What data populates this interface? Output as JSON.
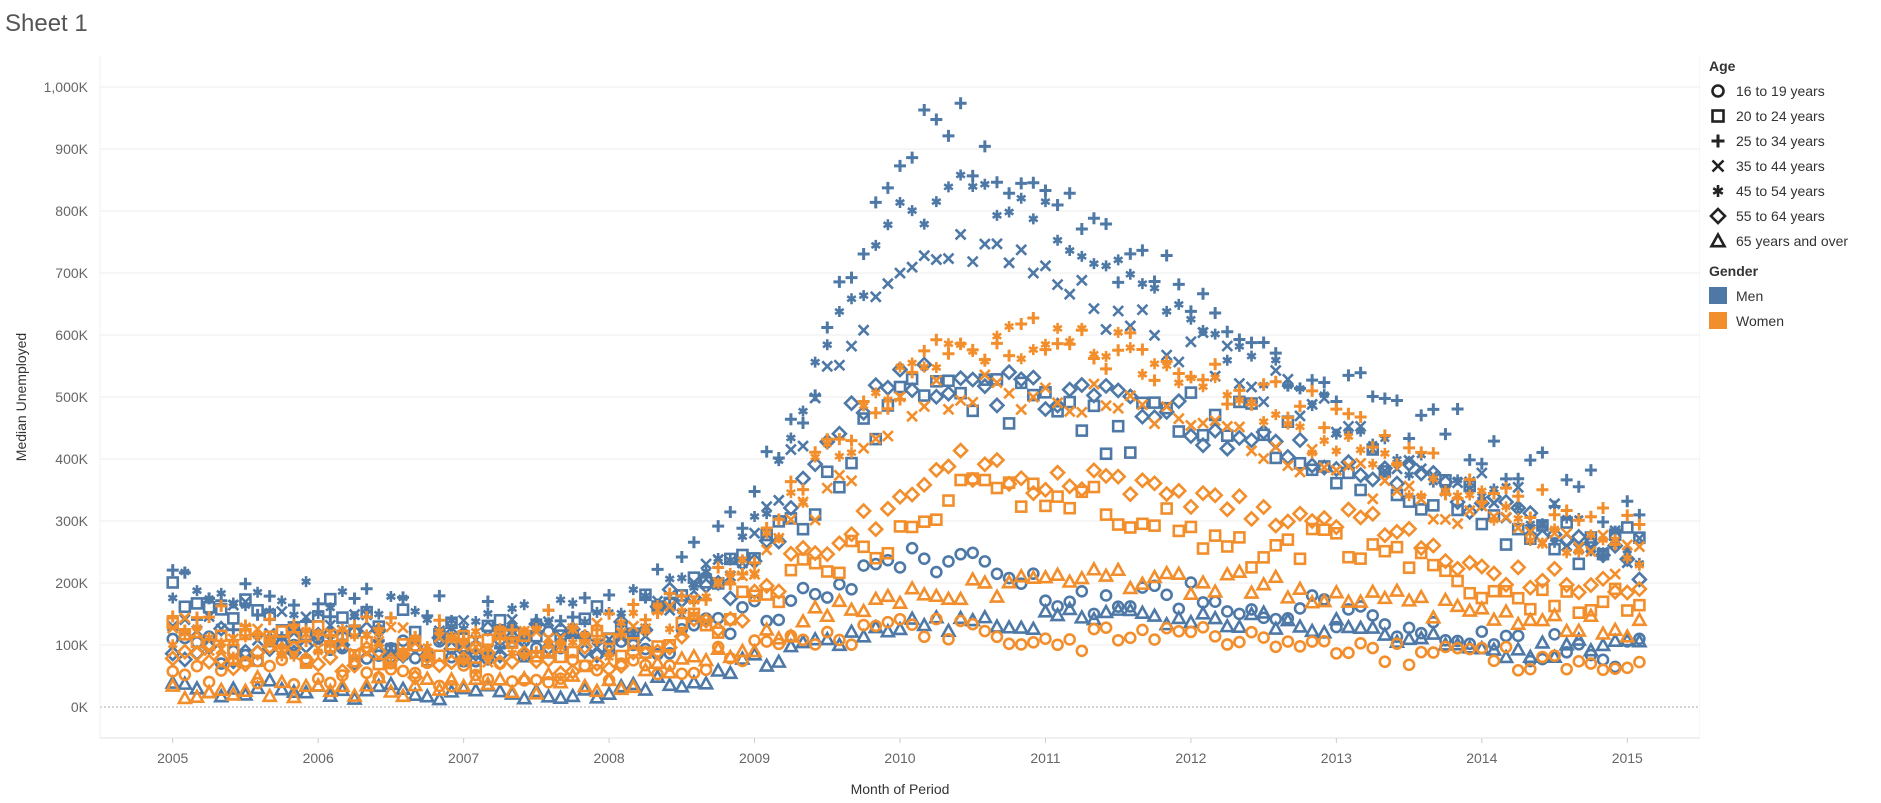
{
  "sheet_title": "Sheet 1",
  "chart_data": {
    "type": "scatter",
    "xlabel": "Month of Period",
    "ylabel": "Median Unemployed",
    "x_ticks": [
      "2005",
      "2006",
      "2007",
      "2008",
      "2009",
      "2010",
      "2011",
      "2012",
      "2013",
      "2014",
      "2015"
    ],
    "y_ticks": [
      "0K",
      "100K",
      "200K",
      "300K",
      "400K",
      "500K",
      "600K",
      "700K",
      "800K",
      "900K",
      "1,000K"
    ],
    "xlim": [
      "2004-07",
      "2015-07"
    ],
    "ylim": [
      -50000,
      1050000
    ],
    "x_start": "2005-01",
    "n_months": 122,
    "grid": "horizontal",
    "legend_position": "right",
    "colors": {
      "Men": "#4e79a7",
      "Women": "#f28e2b"
    },
    "legend": {
      "age_title": "Age",
      "age_items": [
        {
          "label": "16 to 19 years",
          "shape": "circle"
        },
        {
          "label": "20 to 24 years",
          "shape": "square"
        },
        {
          "label": "25 to 34 years",
          "shape": "plus"
        },
        {
          "label": "35 to 44 years",
          "shape": "cross"
        },
        {
          "label": "45 to 54 years",
          "shape": "asterisk"
        },
        {
          "label": "55 to 64 years",
          "shape": "diamond"
        },
        {
          "label": "65 years and over",
          "shape": "triangle"
        }
      ],
      "gender_title": "Gender",
      "gender_items": [
        {
          "label": "Men",
          "color": "#4e79a7"
        },
        {
          "label": "Women",
          "color": "#f28e2b"
        }
      ]
    },
    "series": [
      {
        "gender": "Men",
        "age": "16 to 19 years",
        "shape": "circle",
        "color": "#4e79a7",
        "anchors": [
          [
            "2005-01",
            95000
          ],
          [
            "2007-01",
            90000
          ],
          [
            "2008-06",
            110000
          ],
          [
            "2009-06",
            180000
          ],
          [
            "2010-01",
            240000
          ],
          [
            "2010-06",
            240000
          ],
          [
            "2011-01",
            190000
          ],
          [
            "2011-06",
            170000
          ],
          [
            "2012-01",
            180000
          ],
          [
            "2013-01",
            150000
          ],
          [
            "2014-01",
            100000
          ],
          [
            "2015-01",
            85000
          ]
        ],
        "noise": 25000
      },
      {
        "gender": "Men",
        "age": "20 to 24 years",
        "shape": "square",
        "color": "#4e79a7",
        "anchors": [
          [
            "2005-01",
            170000
          ],
          [
            "2006-01",
            150000
          ],
          [
            "2007-01",
            100000
          ],
          [
            "2008-01",
            130000
          ],
          [
            "2008-06",
            150000
          ],
          [
            "2009-01",
            230000
          ],
          [
            "2009-06",
            340000
          ],
          [
            "2010-01",
            500000
          ],
          [
            "2010-06",
            520000
          ],
          [
            "2011-01",
            480000
          ],
          [
            "2011-06",
            440000
          ],
          [
            "2012-01",
            470000
          ],
          [
            "2012-06",
            450000
          ],
          [
            "2013-01",
            400000
          ],
          [
            "2013-06",
            360000
          ],
          [
            "2014-01",
            310000
          ],
          [
            "2014-06",
            270000
          ],
          [
            "2015-01",
            250000
          ]
        ],
        "noise": 40000
      },
      {
        "gender": "Men",
        "age": "25 to 34 years",
        "shape": "plus",
        "color": "#4e79a7",
        "anchors": [
          [
            "2005-01",
            175000
          ],
          [
            "2006-01",
            150000
          ],
          [
            "2007-01",
            130000
          ],
          [
            "2008-01",
            140000
          ],
          [
            "2008-06",
            200000
          ],
          [
            "2009-01",
            320000
          ],
          [
            "2009-06",
            550000
          ],
          [
            "2009-09",
            680000
          ],
          [
            "2010-01",
            880000
          ],
          [
            "2010-05",
            960000
          ],
          [
            "2010-09",
            820000
          ],
          [
            "2011-01",
            810000
          ],
          [
            "2011-06",
            740000
          ],
          [
            "2012-01",
            660000
          ],
          [
            "2012-06",
            600000
          ],
          [
            "2013-01",
            520000
          ],
          [
            "2013-06",
            470000
          ],
          [
            "2014-01",
            430000
          ],
          [
            "2014-06",
            370000
          ],
          [
            "2015-01",
            320000
          ]
        ],
        "noise": 50000
      },
      {
        "gender": "Men",
        "age": "35 to 44 years",
        "shape": "cross",
        "color": "#4e79a7",
        "anchors": [
          [
            "2005-01",
            150000
          ],
          [
            "2006-01",
            130000
          ],
          [
            "2007-01",
            110000
          ],
          [
            "2008-01",
            130000
          ],
          [
            "2008-06",
            160000
          ],
          [
            "2009-01",
            260000
          ],
          [
            "2009-06",
            490000
          ],
          [
            "2010-01",
            720000
          ],
          [
            "2010-06",
            740000
          ],
          [
            "2011-01",
            700000
          ],
          [
            "2011-06",
            640000
          ],
          [
            "2012-01",
            580000
          ],
          [
            "2012-06",
            530000
          ],
          [
            "2013-01",
            460000
          ],
          [
            "2013-06",
            400000
          ],
          [
            "2014-01",
            350000
          ],
          [
            "2014-06",
            300000
          ],
          [
            "2015-01",
            260000
          ]
        ],
        "noise": 35000
      },
      {
        "gender": "Men",
        "age": "45 to 54 years",
        "shape": "asterisk",
        "color": "#4e79a7",
        "anchors": [
          [
            "2005-01",
            195000
          ],
          [
            "2006-01",
            175000
          ],
          [
            "2007-01",
            135000
          ],
          [
            "2008-01",
            150000
          ],
          [
            "2008-06",
            190000
          ],
          [
            "2009-01",
            290000
          ],
          [
            "2009-06",
            540000
          ],
          [
            "2010-01",
            790000
          ],
          [
            "2010-06",
            830000
          ],
          [
            "2011-01",
            790000
          ],
          [
            "2011-06",
            710000
          ],
          [
            "2012-01",
            620000
          ],
          [
            "2012-06",
            560000
          ],
          [
            "2013-01",
            470000
          ],
          [
            "2013-06",
            410000
          ],
          [
            "2014-01",
            350000
          ],
          [
            "2014-06",
            300000
          ],
          [
            "2015-01",
            260000
          ]
        ],
        "noise": 30000
      },
      {
        "gender": "Men",
        "age": "55 to 64 years",
        "shape": "diamond",
        "color": "#4e79a7",
        "anchors": [
          [
            "2005-01",
            100000
          ],
          [
            "2007-01",
            100000
          ],
          [
            "2008-01",
            110000
          ],
          [
            "2008-06",
            160000
          ],
          [
            "2009-01",
            220000
          ],
          [
            "2009-06",
            400000
          ],
          [
            "2010-01",
            540000
          ],
          [
            "2010-06",
            520000
          ],
          [
            "2011-01",
            510000
          ],
          [
            "2011-06",
            490000
          ],
          [
            "2012-01",
            460000
          ],
          [
            "2012-06",
            420000
          ],
          [
            "2013-01",
            400000
          ],
          [
            "2013-06",
            370000
          ],
          [
            "2014-01",
            340000
          ],
          [
            "2014-06",
            280000
          ],
          [
            "2015-01",
            230000
          ]
        ],
        "noise": 30000
      },
      {
        "gender": "Men",
        "age": "65 years and over",
        "shape": "triangle",
        "color": "#4e79a7",
        "anchors": [
          [
            "2005-01",
            35000
          ],
          [
            "2006-01",
            25000
          ],
          [
            "2007-01",
            20000
          ],
          [
            "2008-01",
            30000
          ],
          [
            "2008-06",
            40000
          ],
          [
            "2009-01",
            70000
          ],
          [
            "2009-06",
            100000
          ],
          [
            "2010-01",
            130000
          ],
          [
            "2010-06",
            135000
          ],
          [
            "2011-01",
            140000
          ],
          [
            "2011-06",
            150000
          ],
          [
            "2012-01",
            140000
          ],
          [
            "2012-06",
            140000
          ],
          [
            "2013-01",
            130000
          ],
          [
            "2014-01",
            95000
          ],
          [
            "2015-01",
            95000
          ]
        ],
        "noise": 15000
      },
      {
        "gender": "Women",
        "age": "16 to 19 years",
        "shape": "circle",
        "color": "#f28e2b",
        "anchors": [
          [
            "2005-01",
            60000
          ],
          [
            "2007-01",
            50000
          ],
          [
            "2008-06",
            65000
          ],
          [
            "2009-01",
            90000
          ],
          [
            "2009-06",
            110000
          ],
          [
            "2010-01",
            130000
          ],
          [
            "2010-06",
            120000
          ],
          [
            "2011-01",
            110000
          ],
          [
            "2012-01",
            110000
          ],
          [
            "2013-01",
            95000
          ],
          [
            "2014-01",
            80000
          ],
          [
            "2015-01",
            70000
          ]
        ],
        "noise": 20000
      },
      {
        "gender": "Women",
        "age": "20 to 24 years",
        "shape": "square",
        "color": "#f28e2b",
        "anchors": [
          [
            "2005-01",
            110000
          ],
          [
            "2007-01",
            90000
          ],
          [
            "2008-01",
            95000
          ],
          [
            "2008-06",
            110000
          ],
          [
            "2009-01",
            170000
          ],
          [
            "2009-06",
            220000
          ],
          [
            "2010-01",
            280000
          ],
          [
            "2010-06",
            350000
          ],
          [
            "2011-01",
            330000
          ],
          [
            "2011-06",
            330000
          ],
          [
            "2012-01",
            280000
          ],
          [
            "2012-06",
            250000
          ],
          [
            "2013-01",
            260000
          ],
          [
            "2013-06",
            240000
          ],
          [
            "2014-01",
            200000
          ],
          [
            "2014-06",
            180000
          ],
          [
            "2015-01",
            160000
          ]
        ],
        "noise": 30000
      },
      {
        "gender": "Women",
        "age": "25 to 34 years",
        "shape": "plus",
        "color": "#f28e2b",
        "anchors": [
          [
            "2005-01",
            140000
          ],
          [
            "2007-01",
            110000
          ],
          [
            "2008-01",
            130000
          ],
          [
            "2008-06",
            150000
          ],
          [
            "2009-01",
            230000
          ],
          [
            "2009-06",
            420000
          ],
          [
            "2010-01",
            520000
          ],
          [
            "2010-06",
            590000
          ],
          [
            "2011-01",
            600000
          ],
          [
            "2011-06",
            580000
          ],
          [
            "2012-01",
            540000
          ],
          [
            "2012-06",
            510000
          ],
          [
            "2013-01",
            470000
          ],
          [
            "2013-06",
            420000
          ],
          [
            "2014-01",
            340000
          ],
          [
            "2014-06",
            320000
          ],
          [
            "2015-01",
            280000
          ]
        ],
        "noise": 35000
      },
      {
        "gender": "Women",
        "age": "35 to 44 years",
        "shape": "cross",
        "color": "#f28e2b",
        "anchors": [
          [
            "2005-01",
            120000
          ],
          [
            "2007-01",
            100000
          ],
          [
            "2008-01",
            110000
          ],
          [
            "2008-06",
            140000
          ],
          [
            "2009-01",
            200000
          ],
          [
            "2009-06",
            330000
          ],
          [
            "2010-01",
            480000
          ],
          [
            "2010-06",
            510000
          ],
          [
            "2011-01",
            500000
          ],
          [
            "2011-06",
            490000
          ],
          [
            "2012-01",
            460000
          ],
          [
            "2012-06",
            420000
          ],
          [
            "2013-01",
            380000
          ],
          [
            "2013-06",
            340000
          ],
          [
            "2014-01",
            300000
          ],
          [
            "2014-06",
            270000
          ],
          [
            "2015-01",
            240000
          ]
        ],
        "noise": 30000
      },
      {
        "gender": "Women",
        "age": "45 to 54 years",
        "shape": "asterisk",
        "color": "#f28e2b",
        "anchors": [
          [
            "2005-01",
            110000
          ],
          [
            "2007-01",
            95000
          ],
          [
            "2008-01",
            110000
          ],
          [
            "2008-06",
            140000
          ],
          [
            "2009-01",
            220000
          ],
          [
            "2009-06",
            380000
          ],
          [
            "2010-01",
            520000
          ],
          [
            "2010-06",
            580000
          ],
          [
            "2011-01",
            590000
          ],
          [
            "2011-06",
            580000
          ],
          [
            "2012-01",
            540000
          ],
          [
            "2012-06",
            480000
          ],
          [
            "2013-01",
            420000
          ],
          [
            "2013-06",
            370000
          ],
          [
            "2014-01",
            320000
          ],
          [
            "2014-06",
            280000
          ],
          [
            "2015-01",
            240000
          ]
        ],
        "noise": 30000
      },
      {
        "gender": "Women",
        "age": "55 to 64 years",
        "shape": "diamond",
        "color": "#f28e2b",
        "anchors": [
          [
            "2005-01",
            75000
          ],
          [
            "2007-01",
            70000
          ],
          [
            "2008-01",
            80000
          ],
          [
            "2008-06",
            100000
          ],
          [
            "2009-01",
            170000
          ],
          [
            "2009-06",
            260000
          ],
          [
            "2010-01",
            330000
          ],
          [
            "2010-06",
            390000
          ],
          [
            "2011-01",
            360000
          ],
          [
            "2011-06",
            370000
          ],
          [
            "2012-01",
            340000
          ],
          [
            "2012-06",
            320000
          ],
          [
            "2013-01",
            310000
          ],
          [
            "2013-06",
            280000
          ],
          [
            "2014-01",
            220000
          ],
          [
            "2014-06",
            200000
          ],
          [
            "2015-01",
            190000
          ]
        ],
        "noise": 25000
      },
      {
        "gender": "Women",
        "age": "65 years and over",
        "shape": "triangle",
        "color": "#f28e2b",
        "anchors": [
          [
            "2005-01",
            30000
          ],
          [
            "2007-01",
            30000
          ],
          [
            "2008-01",
            40000
          ],
          [
            "2008-06",
            60000
          ],
          [
            "2009-01",
            100000
          ],
          [
            "2009-06",
            150000
          ],
          [
            "2010-01",
            180000
          ],
          [
            "2010-06",
            190000
          ],
          [
            "2011-01",
            200000
          ],
          [
            "2011-06",
            210000
          ],
          [
            "2012-01",
            200000
          ],
          [
            "2012-06",
            200000
          ],
          [
            "2013-01",
            180000
          ],
          [
            "2013-06",
            170000
          ],
          [
            "2014-01",
            150000
          ],
          [
            "2014-06",
            140000
          ],
          [
            "2015-01",
            130000
          ]
        ],
        "noise": 18000
      }
    ]
  }
}
